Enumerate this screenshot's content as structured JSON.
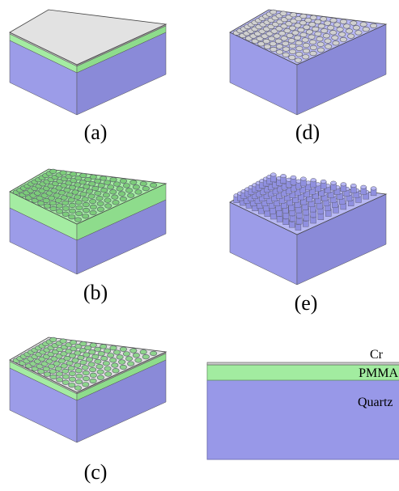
{
  "panels": [
    {
      "label": "(a)"
    },
    {
      "label": "(b)"
    },
    {
      "label": "(c)"
    },
    {
      "label": "(d)"
    },
    {
      "label": "(e)"
    }
  ],
  "cross_section": {
    "layers": [
      "Cr",
      "PMMA",
      "Quartz"
    ]
  }
}
